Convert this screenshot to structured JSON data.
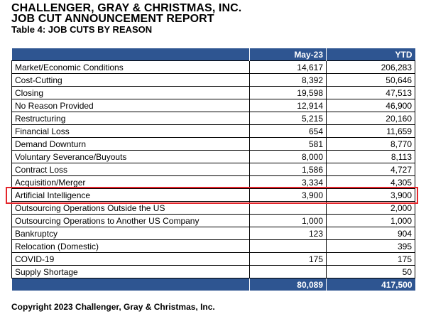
{
  "header": {
    "title_line1": "CHALLENGER, GRAY & CHRISTMAS, INC.",
    "title_line2": "JOB CUT ANNOUNCEMENT REPORT",
    "subtitle": "Table 4: JOB CUTS BY REASON"
  },
  "table": {
    "columns": [
      "",
      "May-23",
      "YTD"
    ],
    "rows": [
      {
        "reason": "Market/Economic Conditions",
        "may": "14,617",
        "ytd": "206,283"
      },
      {
        "reason": "Cost-Cutting",
        "may": "8,392",
        "ytd": "50,646"
      },
      {
        "reason": "Closing",
        "may": "19,598",
        "ytd": "47,513"
      },
      {
        "reason": "No Reason Provided",
        "may": "12,914",
        "ytd": "46,900"
      },
      {
        "reason": "Restructuring",
        "may": "5,215",
        "ytd": "20,160"
      },
      {
        "reason": "Financial Loss",
        "may": "654",
        "ytd": "11,659"
      },
      {
        "reason": "Demand Downturn",
        "may": "581",
        "ytd": "8,770"
      },
      {
        "reason": "Voluntary Severance/Buyouts",
        "may": "8,000",
        "ytd": "8,113"
      },
      {
        "reason": "Contract Loss",
        "may": "1,586",
        "ytd": "4,727"
      },
      {
        "reason": "Acquisition/Merger",
        "may": "3,334",
        "ytd": "4,305"
      },
      {
        "reason": "Artificial Intelligence",
        "may": "3,900",
        "ytd": "3,900"
      },
      {
        "reason": "Outsourcing Operations Outside the US",
        "may": "",
        "ytd": "2,000"
      },
      {
        "reason": "Outsourcing Operations to Another US Company",
        "may": "1,000",
        "ytd": "1,000"
      },
      {
        "reason": "Bankruptcy",
        "may": "123",
        "ytd": "904"
      },
      {
        "reason": "Relocation (Domestic)",
        "may": "",
        "ytd": "395"
      },
      {
        "reason": "COVID-19",
        "may": "175",
        "ytd": "175"
      },
      {
        "reason": "Supply Shortage",
        "may": "",
        "ytd": "50"
      }
    ],
    "total": {
      "label": "",
      "may": "80,089",
      "ytd": "417,500"
    }
  },
  "highlight": {
    "row_reason": "Artificial Intelligence",
    "color": "#e4262b"
  },
  "colors": {
    "header_bg": "#2e5591",
    "header_text": "#ffffff"
  },
  "footer": {
    "copyright": "Copyright 2023 Challenger, Gray & Christmas, Inc."
  }
}
